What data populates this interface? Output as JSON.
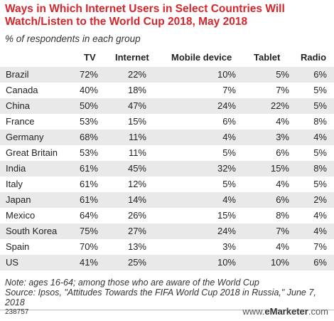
{
  "chart_data": {
    "type": "table",
    "title": "Ways in Which Internet Users in Select Countries Will Watch/Listen to the World Cup 2018, May 2018",
    "subtitle": "% of respondents in each group",
    "columns": [
      "",
      "TV",
      "Internet",
      "Mobile device",
      "Tablet",
      "Radio"
    ],
    "rows": [
      [
        "Brazil",
        "72%",
        "22%",
        "10%",
        "5%",
        "6%"
      ],
      [
        "Canada",
        "40%",
        "18%",
        "7%",
        "7%",
        "5%"
      ],
      [
        "China",
        "50%",
        "47%",
        "24%",
        "22%",
        "5%"
      ],
      [
        "France",
        "53%",
        "15%",
        "6%",
        "4%",
        "8%"
      ],
      [
        "Germany",
        "68%",
        "11%",
        "4%",
        "3%",
        "4%"
      ],
      [
        "Great Britain",
        "53%",
        "11%",
        "5%",
        "6%",
        "5%"
      ],
      [
        "India",
        "61%",
        "45%",
        "32%",
        "15%",
        "8%"
      ],
      [
        "Italy",
        "61%",
        "12%",
        "5%",
        "4%",
        "5%"
      ],
      [
        "Japan",
        "61%",
        "14%",
        "4%",
        "6%",
        "2%"
      ],
      [
        "Mexico",
        "64%",
        "26%",
        "15%",
        "8%",
        "4%"
      ],
      [
        "South Korea",
        "75%",
        "27%",
        "24%",
        "7%",
        "4%"
      ],
      [
        "Spain",
        "70%",
        "13%",
        "3%",
        "4%",
        "7%"
      ],
      [
        "US",
        "41%",
        "25%",
        "10%",
        "10%",
        "6%"
      ]
    ]
  },
  "note": "Note: ages 16-64; among those who are aware of the World Cup",
  "source": "Source: Ipsos, \"Attitudes Towards the FIFA World Cup 2018 in Russia,\" June 7, 2018",
  "chart_id": "238757",
  "brand": {
    "prefix": "www.",
    "name": "eMarketer",
    "suffix": ".com"
  },
  "colors": {
    "title": "#d7252c",
    "row_shade": "#e9e9ea"
  }
}
